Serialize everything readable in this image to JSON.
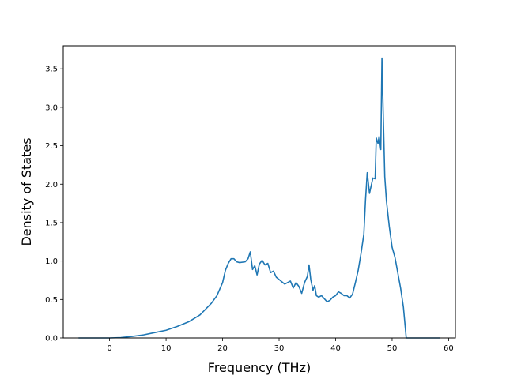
{
  "chart_data": {
    "type": "line",
    "title": "",
    "xlabel": "Frequency (THz)",
    "ylabel": "Density of States",
    "xlim": [
      -8.2,
      61.2
    ],
    "ylim": [
      0.0,
      3.8
    ],
    "grid": false,
    "xticks": [
      0,
      10,
      20,
      30,
      40,
      50,
      60
    ],
    "xtick_labels": [
      "0",
      "10",
      "20",
      "30",
      "40",
      "50",
      "60"
    ],
    "yticks": [
      0.0,
      0.5,
      1.0,
      1.5,
      2.0,
      2.5,
      3.0,
      3.5
    ],
    "ytick_labels": [
      "0.0",
      "0.5",
      "1.0",
      "1.5",
      "2.0",
      "2.5",
      "3.0",
      "3.5"
    ],
    "line_color": "#1f77b4",
    "series": [
      {
        "x": [
          -5.5,
          -2,
          0,
          2,
          4,
          6,
          8,
          10,
          12,
          14,
          16,
          18,
          19,
          20,
          20.5,
          21,
          21.5,
          22,
          22.5,
          23,
          24,
          24.5,
          24.9,
          25.3,
          25.7,
          26.1,
          26.5,
          27,
          27.5,
          28,
          28.5,
          29,
          29.5,
          30,
          31,
          32,
          32.5,
          33,
          33.5,
          34,
          34.5,
          35,
          35.3,
          35.6,
          36,
          36.3,
          36.6,
          37,
          37.5,
          38,
          38.5,
          39,
          39.5,
          40,
          40.5,
          41,
          41.5,
          42,
          42.5,
          43,
          43.5,
          44,
          44.5,
          45,
          45.3,
          45.6,
          46,
          46.3,
          46.6,
          47,
          47.2,
          47.5,
          47.7,
          48,
          48.2,
          48.4,
          48.7,
          49,
          49.5,
          50,
          50.5,
          51,
          51.5,
          52,
          52.5,
          53,
          53.5,
          55,
          58.5
        ],
        "y": [
          0.0,
          0.0,
          0.0,
          0.005,
          0.02,
          0.04,
          0.07,
          0.1,
          0.15,
          0.21,
          0.3,
          0.45,
          0.55,
          0.72,
          0.88,
          0.97,
          1.03,
          1.03,
          0.99,
          0.98,
          0.99,
          1.03,
          1.12,
          0.89,
          0.94,
          0.82,
          0.96,
          1.01,
          0.95,
          0.97,
          0.85,
          0.87,
          0.79,
          0.76,
          0.7,
          0.74,
          0.65,
          0.72,
          0.67,
          0.58,
          0.72,
          0.8,
          0.95,
          0.76,
          0.62,
          0.68,
          0.55,
          0.53,
          0.55,
          0.51,
          0.47,
          0.49,
          0.53,
          0.55,
          0.6,
          0.58,
          0.55,
          0.55,
          0.52,
          0.57,
          0.72,
          0.88,
          1.1,
          1.35,
          1.8,
          2.15,
          1.88,
          1.98,
          2.08,
          2.07,
          2.6,
          2.53,
          2.62,
          2.45,
          3.64,
          3.0,
          2.1,
          1.78,
          1.45,
          1.18,
          1.05,
          0.85,
          0.65,
          0.4,
          0.0,
          0.0,
          0.0,
          0.0,
          0.0
        ]
      }
    ]
  }
}
